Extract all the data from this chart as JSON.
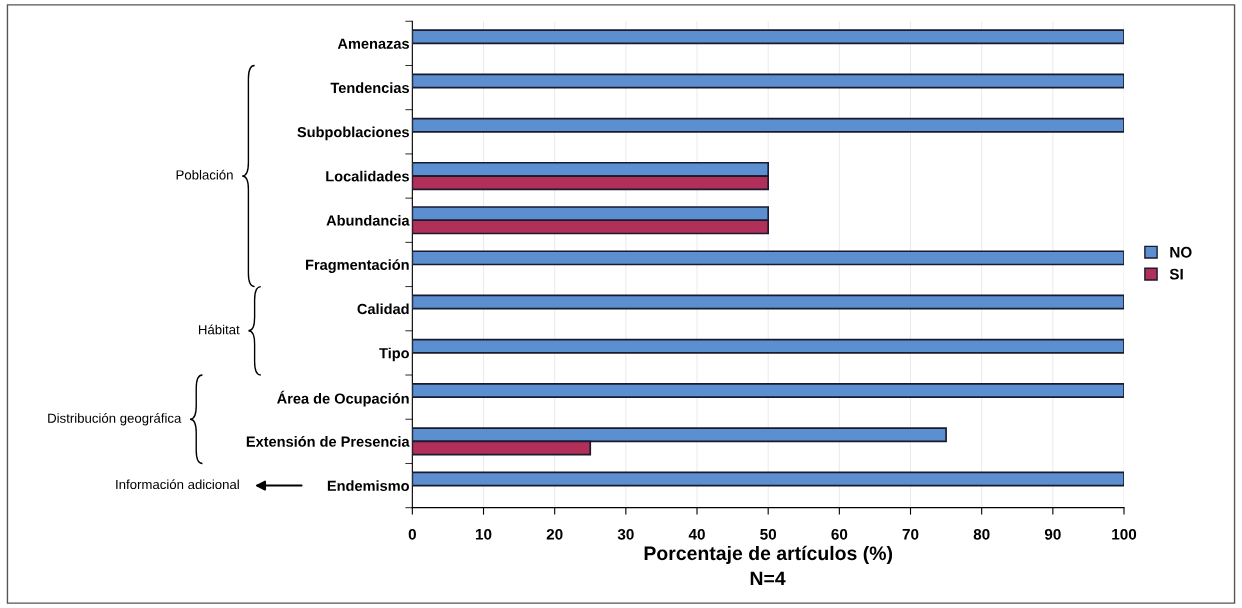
{
  "chart_data": {
    "type": "bar",
    "orientation": "horizontal",
    "categories": [
      "Amenazas",
      "Tendencias",
      "Subpoblaciones",
      "Localidades",
      "Abundancia",
      "Fragmentación",
      "Calidad",
      "Tipo",
      "Área de Ocupación",
      "Extensión de Presencia",
      "Endemismo"
    ],
    "series": [
      {
        "name": "NO",
        "color": "#5b8fd0",
        "values": [
          100,
          100,
          100,
          50,
          50,
          100,
          100,
          100,
          100,
          75,
          100
        ]
      },
      {
        "name": "SI",
        "color": "#b0305a",
        "values": [
          null,
          null,
          null,
          50,
          50,
          null,
          null,
          null,
          null,
          25,
          null
        ]
      }
    ],
    "xlim": [
      0,
      100
    ],
    "xticks": [
      0,
      10,
      20,
      30,
      40,
      50,
      60,
      70,
      80,
      90,
      100
    ],
    "xlabel": "Porcentaje de artículos (%)",
    "annotations": [
      "Población",
      "Hábitat",
      "Distribución geográfica",
      "Información adicional",
      "N=4"
    ],
    "grid": "x",
    "legend": "right"
  }
}
